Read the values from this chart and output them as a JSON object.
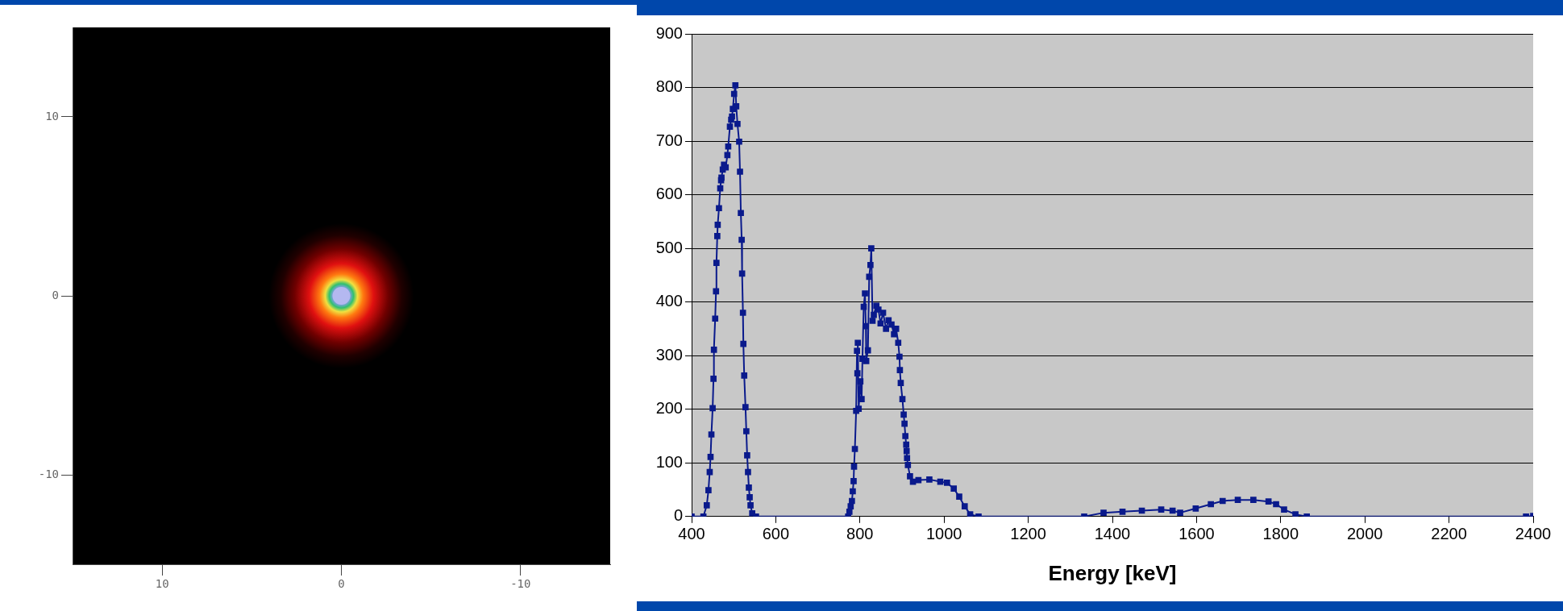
{
  "chart_data": [
    {
      "type": "scatter",
      "xlim": [
        15,
        -15
      ],
      "xticks": [
        10,
        0,
        -10
      ],
      "ylim": [
        -15,
        15
      ],
      "yticks": [
        -10,
        0,
        10
      ],
      "marker": "circle",
      "series": [
        {
          "color": "#b4b8f0",
          "x": [
            0
          ],
          "values": [
            0
          ]
        }
      ]
    },
    {
      "type": "line",
      "xlabel": "Energy [keV]",
      "xlim": [
        400,
        2400
      ],
      "xticks": [
        400,
        600,
        800,
        1000,
        1200,
        1400,
        1600,
        1800,
        2000,
        2200,
        2400
      ],
      "ylim": [
        0,
        900
      ],
      "yticks": [
        0,
        100,
        200,
        300,
        400,
        500,
        600,
        700,
        800,
        900
      ],
      "grid": "y",
      "legend": false,
      "marker": "square",
      "line_style": "solid",
      "series": [
        {
          "color": "#0a1a8c",
          "x": [
            400,
            428,
            436,
            440,
            443,
            445,
            447,
            450,
            452,
            453,
            456,
            458,
            459,
            461,
            462,
            465,
            468,
            470,
            471,
            474,
            477,
            481,
            485,
            487,
            491,
            494,
            496,
            498,
            501,
            504,
            506,
            509,
            513,
            515,
            517,
            519,
            520,
            522,
            523,
            525,
            528,
            530,
            532,
            534,
            536,
            538,
            540,
            544,
            553,
            772,
            775,
            778,
            781,
            783,
            785,
            786,
            788,
            791,
            793,
            794,
            795,
            797,
            801,
            804,
            806,
            809,
            812,
            814,
            815,
            819,
            822,
            825,
            827,
            830,
            833,
            839,
            844,
            849,
            855,
            862,
            868,
            875,
            881,
            886,
            891,
            894,
            895,
            897,
            901,
            904,
            906,
            908,
            910,
            911,
            912,
            914,
            919,
            926,
            939,
            965,
            991,
            1007,
            1023,
            1036,
            1049,
            1062,
            1082,
            1333,
            1379,
            1424,
            1470,
            1516,
            1543,
            1561,
            1598,
            1634,
            1662,
            1698,
            1735,
            1771,
            1789,
            1808,
            1835,
            1862,
            2383,
            2400
          ],
          "values": [
            0,
            0,
            21,
            49,
            83,
            111,
            153,
            202,
            257,
            311,
            369,
            420,
            473,
            523,
            544,
            575,
            612,
            627,
            632,
            647,
            656,
            651,
            674,
            690,
            727,
            740,
            746,
            760,
            788,
            804,
            765,
            732,
            699,
            643,
            566,
            516,
            453,
            380,
            322,
            263,
            204,
            159,
            114,
            83,
            54,
            36,
            21,
            6,
            0,
            0,
            9,
            19,
            29,
            47,
            66,
            93,
            126,
            197,
            309,
            267,
            324,
            201,
            252,
            219,
            294,
            391,
            416,
            355,
            290,
            310,
            447,
            469,
            500,
            365,
            376,
            393,
            386,
            360,
            380,
            350,
            366,
            358,
            340,
            350,
            324,
            298,
            273,
            249,
            219,
            190,
            173,
            150,
            134,
            122,
            109,
            96,
            75,
            65,
            68,
            69,
            65,
            63,
            52,
            37,
            19,
            4,
            0,
            0,
            7,
            9,
            11,
            13,
            11,
            7,
            15,
            23,
            29,
            31,
            31,
            28,
            23,
            13,
            4,
            0,
            0,
            1
          ]
        }
      ]
    }
  ]
}
